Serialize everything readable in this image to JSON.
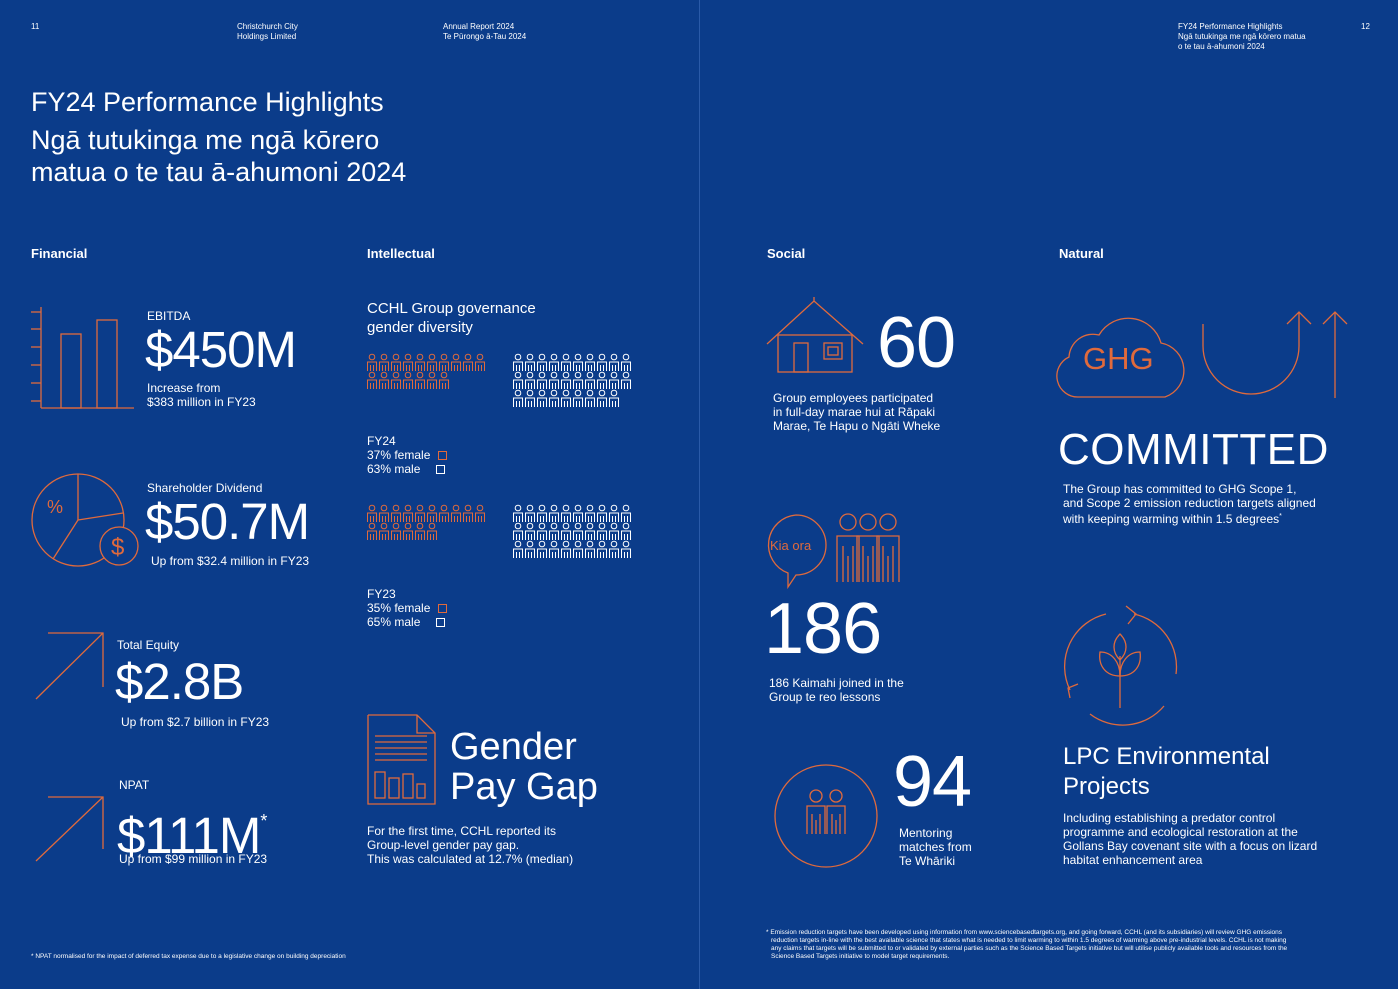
{
  "left_header": {
    "page_number": "11",
    "org_line1": "Christchurch City",
    "org_line2": "Holdings Limited",
    "report_line1": "Annual Report 2024",
    "report_line2": "Te Pūrongo ā-Tau 2024"
  },
  "right_header": {
    "page_number": "12",
    "line1": "FY24 Performance Highlights",
    "line2": "Ngā tutukinga me ngā kōrero matua",
    "line3": "o te tau ā-ahumoni 2024"
  },
  "title": {
    "line1": "FY24 Performance Highlights",
    "line2": "Ngā tutukinga me ngā kōrero",
    "line3": "matua o te tau ā-ahumoni 2024"
  },
  "sections": {
    "financial": "Financial",
    "intellectual": "Intellectual",
    "social": "Social",
    "natural": "Natural"
  },
  "financial": {
    "ebitda": {
      "label": "EBITDA",
      "value": "$450M",
      "note1": "Increase from",
      "note2": "$383 million in FY23"
    },
    "dividend": {
      "label": "Shareholder Dividend",
      "value": "$50.7M",
      "note": "Up from $32.4 million in FY23"
    },
    "equity": {
      "label": "Total Equity",
      "value": "$2.8B",
      "note": "Up from $2.7 billion in FY23"
    },
    "npat": {
      "label": "NPAT",
      "value": "$111M",
      "asterisk": "*",
      "note": "Up from $99 million in FY23"
    },
    "footnote": "* NPAT normalised for the impact of deferred tax expense due to a legislative change on building depreciation"
  },
  "intellectual": {
    "heading1": "CCHL Group governance",
    "heading2": "gender diversity",
    "fy24": {
      "year": "FY24",
      "female": "37% female",
      "male": "63% male",
      "female_count": 17,
      "male_count": 29
    },
    "fy23": {
      "year": "FY23",
      "female": "35% female",
      "male": "65% male",
      "female_count": 16,
      "male_count": 30
    },
    "gender_pay_gap": {
      "title1": "Gender",
      "title2": "Pay Gap",
      "note1": "For the first time, CCHL reported its",
      "note2": "Group-level gender pay gap.",
      "note3": "This was calculated at 12.7% (median)"
    }
  },
  "social": {
    "marae": {
      "value": "60",
      "note1": "Group employees participated",
      "note2": "in full-day marae hui at Rāpaki",
      "note3": "Marae, Te Hapu o Ngāti Wheke"
    },
    "reo": {
      "bubble": "Kia ora",
      "value": "186",
      "note1": "186 Kaimahi joined in the",
      "note2": "Group te reo lessons"
    },
    "mentoring": {
      "value": "94",
      "note1": "Mentoring",
      "note2": "matches from",
      "note3": "Te Whāriki"
    }
  },
  "natural": {
    "ghg_label": "GHG",
    "committed": "COMMITTED",
    "ghg_note1": "The Group has committed to GHG Scope 1,",
    "ghg_note2": "and Scope 2 emission reduction targets aligned",
    "ghg_note3": "with keeping warming within 1.5 degrees",
    "ghg_asterisk": "*",
    "lpc_title1": "LPC Environmental",
    "lpc_title2": "Projects",
    "lpc_note1": "Including establishing a predator control",
    "lpc_note2": "programme and ecological restoration at the",
    "lpc_note3": "Gollans Bay covenant site with a focus on lizard",
    "lpc_note4": "habitat enhancement area",
    "footnote1": "* Emission reduction targets have been developed using information from www.sciencebasedtargets.org, and going forward, CCHL (and its subsidiaries) will review GHG emissions",
    "footnote2": "reduction targets in-line with the best available science that states what is needed to limit warming to within 1.5 degrees of warming above pre-industrial levels. CCHL is not making",
    "footnote3": "any claims that targets will be submitted to or validated by external parties such as the Science Based Targets initiative but will utilise publicly available tools and resources from the",
    "footnote4": "Science Based Targets initiative to model target requirements."
  },
  "colors": {
    "background": "#0b3c8a",
    "accent": "#e06a3c",
    "text": "#ffffff"
  },
  "icons": [
    "bar-chart-icon",
    "pie-chart-icon",
    "dollar-coin-icon",
    "growth-arrow-icon",
    "person-icon",
    "document-chart-icon",
    "house-icon",
    "speech-bubble-icon",
    "group-icon",
    "people-circle-icon",
    "cloud-icon",
    "u-arrow-icon",
    "seedling-cycle-icon"
  ]
}
